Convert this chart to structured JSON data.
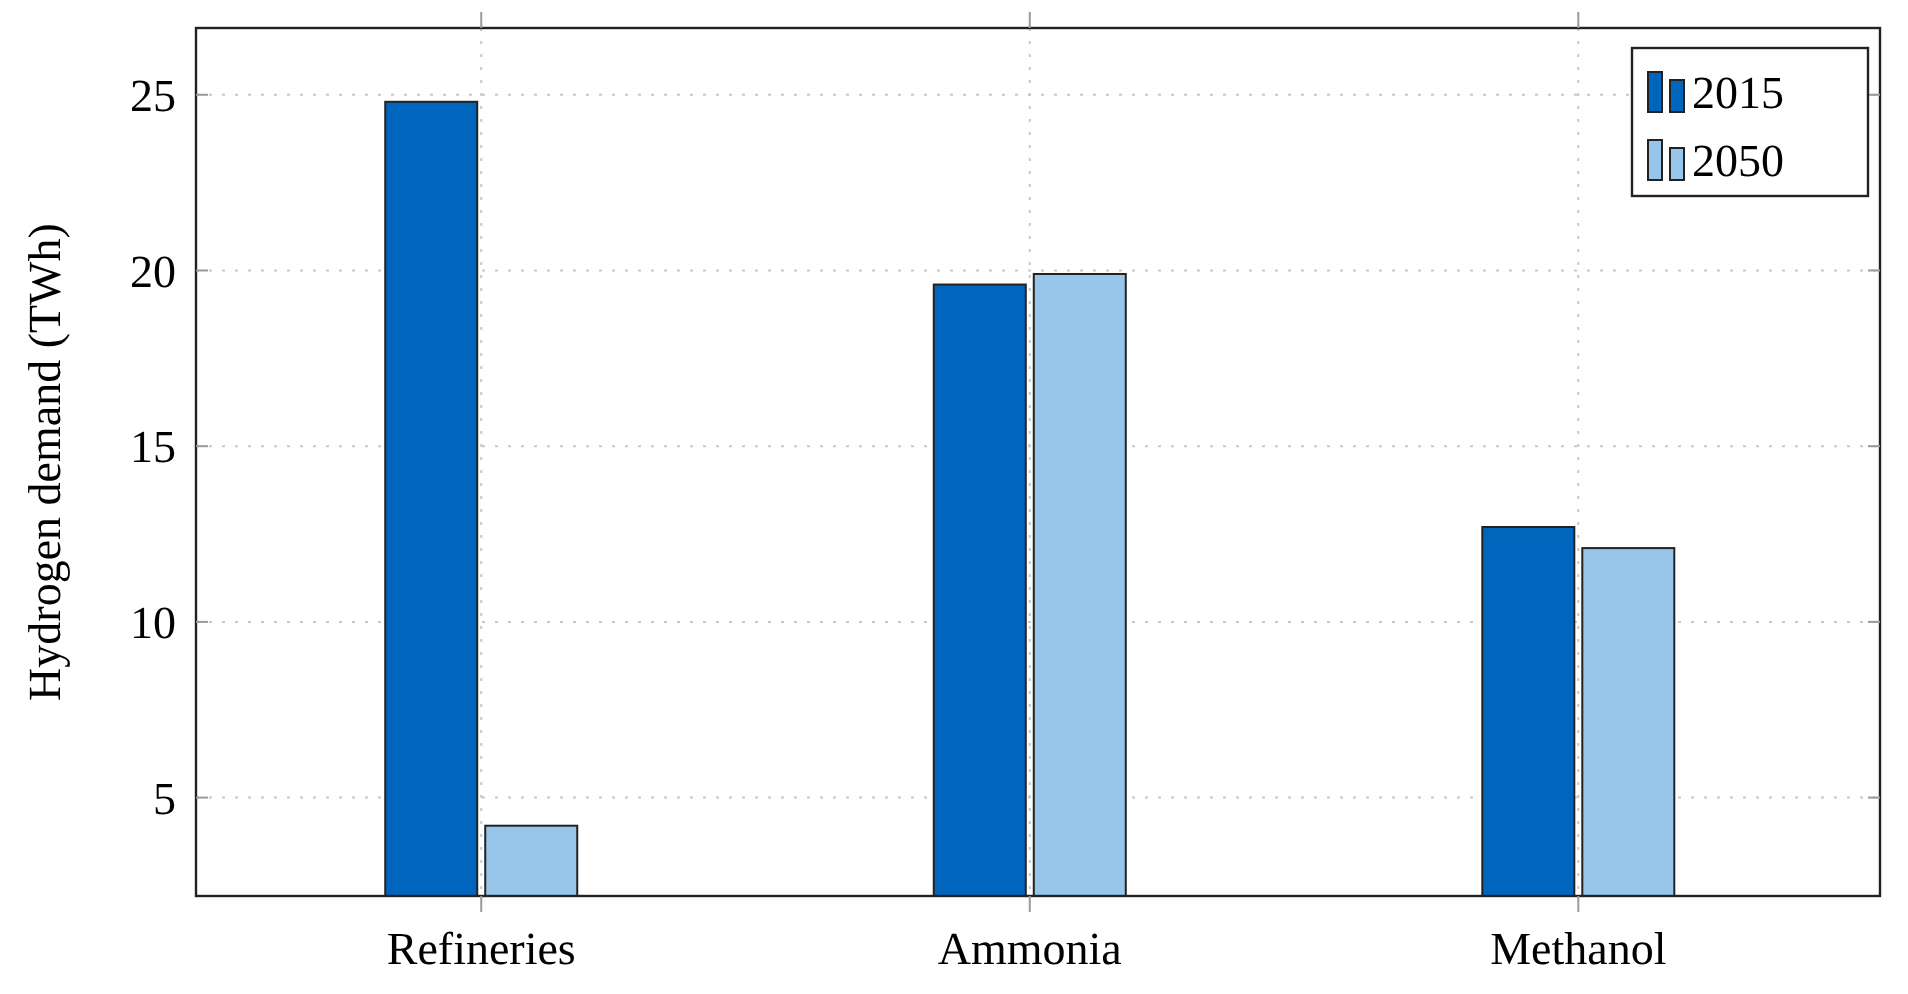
{
  "chart_data": {
    "type": "bar",
    "ylabel": "Hydrogen demand (TWh)",
    "categories": [
      "Refineries",
      "Ammonia",
      "Methanol"
    ],
    "series": [
      {
        "name": "2015",
        "color": "#0065bd",
        "values": [
          24.8,
          19.6,
          12.7
        ]
      },
      {
        "name": "2050",
        "color": "#98c6ea",
        "values": [
          4.2,
          19.9,
          12.1
        ]
      }
    ],
    "ylim": [
      2.2,
      26.9
    ],
    "yticks": [
      5,
      10,
      15,
      20,
      25
    ],
    "grid": true,
    "legend": "top right"
  }
}
